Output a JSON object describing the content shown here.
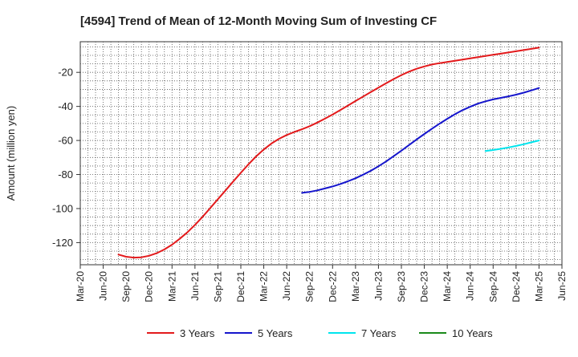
{
  "chart_data": {
    "type": "line",
    "title": "[4594]  Trend of Mean of 12-Month Moving Sum of Investing CF",
    "xlabel": "",
    "ylabel": "Amount (million yen)",
    "ylim": [
      -133,
      -2
    ],
    "yticks": [
      -20,
      -40,
      -60,
      -80,
      -100,
      -120
    ],
    "xticks": [
      "Mar-20",
      "Jun-20",
      "Sep-20",
      "Dec-20",
      "Mar-21",
      "Jun-21",
      "Sep-21",
      "Dec-21",
      "Mar-22",
      "Jun-22",
      "Sep-22",
      "Dec-22",
      "Mar-23",
      "Jun-23",
      "Sep-23",
      "Dec-23",
      "Mar-24",
      "Jun-24",
      "Sep-24",
      "Dec-24",
      "Mar-25",
      "Jun-25"
    ],
    "grid": true,
    "legend_position": "bottom",
    "series": [
      {
        "name": "3 Years",
        "color": "#e31a1c",
        "x": [
          "Aug-20",
          "Sep-20",
          "Oct-20",
          "Nov-20",
          "Dec-20",
          "Jan-21",
          "Feb-21",
          "Mar-21",
          "Apr-21",
          "May-21",
          "Jun-21",
          "Jul-21",
          "Aug-21",
          "Sep-21",
          "Oct-21",
          "Nov-21",
          "Dec-21",
          "Jan-22",
          "Feb-22",
          "Mar-22",
          "Apr-22",
          "May-22",
          "Jun-22",
          "Jul-22",
          "Aug-22",
          "Sep-22",
          "Oct-22",
          "Nov-22",
          "Dec-22",
          "Jan-23",
          "Feb-23",
          "Mar-23",
          "Apr-23",
          "May-23",
          "Jun-23",
          "Jul-23",
          "Aug-23",
          "Sep-23",
          "Oct-23",
          "Nov-23",
          "Dec-23",
          "Jan-24",
          "Feb-24",
          "Mar-24",
          "Apr-24",
          "May-24",
          "Jun-24",
          "Jul-24",
          "Aug-24",
          "Sep-24",
          "Oct-24",
          "Nov-24",
          "Dec-24",
          "Jan-25",
          "Feb-25",
          "Mar-25"
        ],
        "values": [
          -127,
          -128.3,
          -128.8,
          -128.6,
          -127.7,
          -126.2,
          -124,
          -121.2,
          -117.8,
          -114,
          -109.6,
          -104.8,
          -99.7,
          -94.5,
          -89.3,
          -84.1,
          -79,
          -74,
          -69.4,
          -65.3,
          -61.8,
          -59,
          -56.8,
          -55,
          -53.4,
          -51.6,
          -49.5,
          -47.2,
          -44.8,
          -42.2,
          -39.5,
          -36.8,
          -34.2,
          -31.6,
          -29,
          -26.4,
          -23.9,
          -21.6,
          -19.6,
          -17.9,
          -16.5,
          -15.4,
          -14.6,
          -13.9,
          -13.2,
          -12.5,
          -11.8,
          -11.1,
          -10.4,
          -9.7,
          -9,
          -8.3,
          -7.6,
          -6.9,
          -6.2,
          -5.5
        ]
      },
      {
        "name": "5 Years",
        "color": "#1515cc",
        "x": [
          "Aug-22",
          "Sep-22",
          "Oct-22",
          "Nov-22",
          "Dec-22",
          "Jan-23",
          "Feb-23",
          "Mar-23",
          "Apr-23",
          "May-23",
          "Jun-23",
          "Jul-23",
          "Aug-23",
          "Sep-23",
          "Oct-23",
          "Nov-23",
          "Dec-23",
          "Jan-24",
          "Feb-24",
          "Mar-24",
          "Apr-24",
          "May-24",
          "Jun-24",
          "Jul-24",
          "Aug-24",
          "Sep-24",
          "Oct-24",
          "Nov-24",
          "Dec-24",
          "Jan-25",
          "Feb-25",
          "Mar-25"
        ],
        "values": [
          -90.8,
          -90.2,
          -89.3,
          -88.2,
          -87,
          -85.6,
          -84,
          -82.2,
          -80.1,
          -77.8,
          -75.2,
          -72.3,
          -69.2,
          -66,
          -62.7,
          -59.4,
          -56.2,
          -53.1,
          -50.1,
          -47.3,
          -44.6,
          -42.2,
          -40.2,
          -38.4,
          -37,
          -35.9,
          -35,
          -34.1,
          -33.1,
          -31.9,
          -30.6,
          -29.2
        ]
      },
      {
        "name": "7 Years",
        "color": "#00e5ee",
        "x": [
          "Aug-24",
          "Sep-24",
          "Oct-24",
          "Nov-24",
          "Dec-24",
          "Jan-25",
          "Feb-25",
          "Mar-25"
        ],
        "values": [
          -66.2,
          -65.6,
          -64.9,
          -64.1,
          -63.2,
          -62.2,
          -61.1,
          -60
        ]
      },
      {
        "name": "10 Years",
        "color": "#1a8a1a",
        "x": [],
        "values": []
      }
    ]
  }
}
